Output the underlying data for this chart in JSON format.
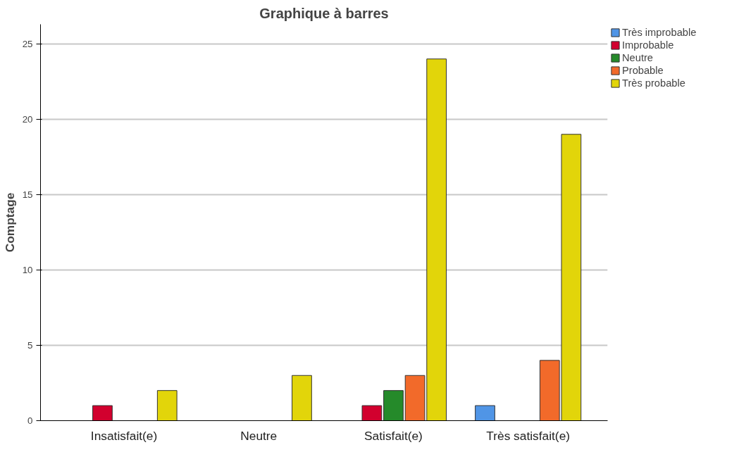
{
  "chart_data": {
    "type": "bar",
    "title": "Graphique à barres",
    "ylabel": "Comptage",
    "categories": [
      "Insatisfait(e)",
      "Neutre",
      "Satisfait(e)",
      "Très satisfait(e)"
    ],
    "series": [
      {
        "name": "Très improbable",
        "color": "#5095e6",
        "values": [
          null,
          null,
          null,
          1
        ]
      },
      {
        "name": "Improbable",
        "color": "#d2002e",
        "values": [
          1,
          null,
          1,
          null
        ]
      },
      {
        "name": "Neutre",
        "color": "#258a2a",
        "values": [
          null,
          null,
          2,
          null
        ]
      },
      {
        "name": "Probable",
        "color": "#f26a2a",
        "values": [
          null,
          null,
          3,
          4
        ]
      },
      {
        "name": "Très probable",
        "color": "#e2d50a",
        "values": [
          2,
          3,
          24,
          19
        ]
      }
    ],
    "ylim": [
      0,
      26.3
    ],
    "yticks": [
      0,
      5,
      10,
      15,
      20,
      25
    ],
    "grid": "y",
    "legend": "top right"
  }
}
